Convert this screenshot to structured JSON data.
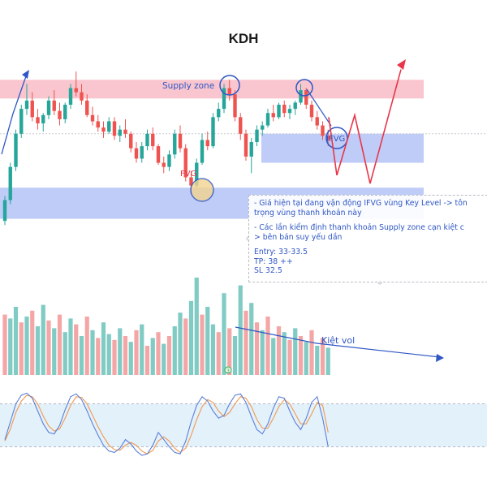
{
  "chart_data": {
    "type": "candlestick",
    "title": "KDH",
    "colors": {
      "up": "#26a69a",
      "down": "#ef5350",
      "vol_up": "#80cbc4",
      "vol_down": "#f4a6a6",
      "supply": "#f9c2cb",
      "demand": "#bcc9f7",
      "annotation": "#2e57c4",
      "red_path": "#e8364a",
      "stoch_k": "#5b7fd8",
      "stoch_d": "#f0994f",
      "stoch_band": "#e3f1fb"
    },
    "zones": [
      {
        "name": "Supply zone",
        "kind": "supply",
        "price_top": 38,
        "price_bottom": 37.1
      },
      {
        "name": "IFVG",
        "kind": "demand",
        "price_top": 35.4,
        "price_bottom": 34.0
      },
      {
        "name": "FVG",
        "kind": "demand",
        "price_top": 32.8,
        "price_bottom": 31.3
      }
    ],
    "ohlc": [
      [
        31.2,
        32.4,
        31.0,
        32.2
      ],
      [
        32.2,
        34.0,
        32.0,
        33.8
      ],
      [
        33.8,
        35.6,
        33.6,
        35.4
      ],
      [
        35.4,
        36.8,
        35.2,
        36.6
      ],
      [
        36.6,
        37.8,
        36.3,
        37.0
      ],
      [
        37.0,
        37.4,
        36.0,
        36.2
      ],
      [
        36.2,
        36.6,
        35.6,
        35.9
      ],
      [
        35.9,
        36.4,
        35.5,
        36.3
      ],
      [
        36.3,
        37.2,
        36.1,
        37.0
      ],
      [
        37.0,
        37.5,
        36.3,
        36.5
      ],
      [
        36.5,
        36.9,
        35.8,
        36.1
      ],
      [
        36.1,
        36.9,
        35.9,
        36.8
      ],
      [
        36.8,
        37.8,
        36.6,
        37.6
      ],
      [
        37.6,
        38.4,
        37.2,
        37.4
      ],
      [
        37.4,
        37.8,
        36.8,
        37.0
      ],
      [
        37.0,
        37.3,
        36.2,
        36.3
      ],
      [
        36.3,
        36.7,
        35.8,
        36.0
      ],
      [
        36.0,
        36.3,
        35.5,
        35.7
      ],
      [
        35.7,
        36.0,
        35.2,
        35.5
      ],
      [
        35.5,
        36.2,
        35.4,
        36.0
      ],
      [
        36.0,
        36.2,
        35.1,
        35.3
      ],
      [
        35.3,
        35.8,
        35.0,
        35.6
      ],
      [
        35.6,
        36.1,
        35.2,
        35.4
      ],
      [
        35.4,
        35.5,
        34.5,
        34.7
      ],
      [
        34.7,
        35.0,
        34.0,
        34.2
      ],
      [
        34.2,
        35.0,
        34.0,
        34.8
      ],
      [
        34.8,
        35.6,
        34.6,
        35.4
      ],
      [
        35.4,
        35.7,
        34.6,
        34.8
      ],
      [
        34.8,
        34.9,
        33.9,
        34.0
      ],
      [
        34.0,
        34.3,
        33.5,
        33.8
      ],
      [
        33.8,
        34.6,
        33.6,
        34.4
      ],
      [
        34.4,
        35.6,
        34.2,
        35.4
      ],
      [
        35.4,
        35.8,
        34.5,
        34.7
      ],
      [
        34.7,
        34.9,
        33.1,
        33.3
      ],
      [
        33.3,
        33.6,
        32.5,
        32.9
      ],
      [
        32.9,
        34.2,
        32.8,
        34.0
      ],
      [
        34.0,
        35.4,
        33.9,
        35.1
      ],
      [
        35.1,
        35.5,
        34.6,
        34.8
      ],
      [
        34.8,
        36.4,
        34.7,
        36.2
      ],
      [
        36.2,
        36.9,
        36.0,
        36.6
      ],
      [
        36.6,
        37.8,
        36.4,
        37.6
      ],
      [
        37.6,
        38.0,
        37.0,
        37.3
      ],
      [
        37.3,
        37.5,
        36.0,
        36.2
      ],
      [
        36.2,
        36.4,
        35.1,
        35.4
      ],
      [
        35.4,
        35.6,
        34.1,
        34.3
      ],
      [
        34.3,
        35.2,
        33.5,
        35.0
      ],
      [
        35.0,
        35.8,
        34.8,
        35.6
      ],
      [
        35.6,
        36.0,
        35.3,
        35.8
      ],
      [
        35.8,
        36.6,
        35.7,
        36.4
      ],
      [
        36.4,
        36.8,
        36.0,
        36.2
      ],
      [
        36.2,
        36.9,
        36.1,
        36.8
      ],
      [
        36.8,
        37.0,
        36.2,
        36.4
      ],
      [
        36.4,
        36.8,
        36.1,
        36.6
      ],
      [
        36.6,
        37.0,
        36.3,
        36.9
      ],
      [
        36.9,
        37.8,
        36.8,
        37.5
      ],
      [
        37.5,
        37.6,
        36.6,
        36.8
      ],
      [
        36.8,
        37.0,
        36.0,
        36.2
      ],
      [
        36.2,
        36.5,
        35.6,
        35.8
      ],
      [
        35.8,
        36.0,
        35.1,
        35.3
      ],
      [
        35.3,
        35.6,
        34.8,
        35.1
      ]
    ],
    "volume": [
      [
        0.62,
        0
      ],
      [
        0.58,
        1
      ],
      [
        0.7,
        1
      ],
      [
        0.54,
        0
      ],
      [
        0.6,
        1
      ],
      [
        0.66,
        0
      ],
      [
        0.5,
        1
      ],
      [
        0.72,
        1
      ],
      [
        0.56,
        0
      ],
      [
        0.48,
        1
      ],
      [
        0.62,
        0
      ],
      [
        0.44,
        1
      ],
      [
        0.58,
        1
      ],
      [
        0.52,
        0
      ],
      [
        0.4,
        1
      ],
      [
        0.6,
        0
      ],
      [
        0.46,
        1
      ],
      [
        0.38,
        0
      ],
      [
        0.54,
        1
      ],
      [
        0.42,
        1
      ],
      [
        0.36,
        0
      ],
      [
        0.48,
        1
      ],
      [
        0.4,
        0
      ],
      [
        0.34,
        1
      ],
      [
        0.46,
        0
      ],
      [
        0.52,
        1
      ],
      [
        0.3,
        0
      ],
      [
        0.38,
        1
      ],
      [
        0.44,
        0
      ],
      [
        0.32,
        1
      ],
      [
        0.4,
        0
      ],
      [
        0.5,
        1
      ],
      [
        0.64,
        1
      ],
      [
        0.58,
        0
      ],
      [
        0.76,
        1
      ],
      [
        1.0,
        1
      ],
      [
        0.62,
        0
      ],
      [
        0.7,
        1
      ],
      [
        0.52,
        1
      ],
      [
        0.44,
        0
      ],
      [
        0.84,
        1
      ],
      [
        0.48,
        0
      ],
      [
        0.4,
        1
      ],
      [
        0.92,
        1
      ],
      [
        0.66,
        0
      ],
      [
        0.74,
        1
      ],
      [
        0.54,
        0
      ],
      [
        0.46,
        1
      ],
      [
        0.6,
        0
      ],
      [
        0.38,
        1
      ],
      [
        0.5,
        0
      ],
      [
        0.44,
        1
      ],
      [
        0.36,
        0
      ],
      [
        0.48,
        1
      ],
      [
        0.4,
        0
      ],
      [
        0.34,
        1
      ],
      [
        0.46,
        0
      ],
      [
        0.3,
        1
      ],
      [
        0.38,
        0
      ],
      [
        0.28,
        1
      ]
    ],
    "stoch_k": [
      30,
      55,
      80,
      92,
      95,
      88,
      70,
      52,
      40,
      38,
      50,
      72,
      90,
      94,
      86,
      70,
      52,
      36,
      22,
      14,
      12,
      18,
      30,
      24,
      14,
      8,
      10,
      22,
      40,
      30,
      20,
      12,
      10,
      28,
      55,
      78,
      90,
      84,
      70,
      60,
      64,
      80,
      92,
      94,
      82,
      62,
      44,
      38,
      52,
      74,
      90,
      88,
      70,
      54,
      44,
      60,
      82,
      90,
      60,
      20
    ],
    "stoch_d": [
      28,
      45,
      68,
      84,
      92,
      90,
      80,
      63,
      49,
      42,
      45,
      60,
      78,
      90,
      89,
      80,
      64,
      48,
      34,
      22,
      16,
      15,
      22,
      26,
      22,
      14,
      10,
      15,
      28,
      34,
      28,
      18,
      12,
      18,
      36,
      58,
      76,
      86,
      82,
      70,
      62,
      68,
      80,
      90,
      88,
      76,
      58,
      46,
      46,
      60,
      76,
      86,
      80,
      66,
      52,
      52,
      66,
      82,
      78,
      40
    ],
    "stoch_band": [
      20,
      80
    ],
    "forecast": [
      36.2,
      33.4,
      36.3,
      33.0,
      38.5
    ],
    "volume_trend": "Kiệt vol"
  },
  "labels": {
    "title": "KDH",
    "supply": "Supply zone",
    "ifvg": "IFVG",
    "fvg": "FVG",
    "kiet_vol": "Kiệt vol"
  },
  "note": {
    "line1": "- Giá hiện tại đang vận động IFVG vùng Key Level -> tôn",
    "line2": "trọng vùng thanh khoản này",
    "line3": "- Các lần kiểm định thanh khoản Supply zone cạn kiệt c",
    "line4": "> bên bán suy yếu dần",
    "entry": "Entry: 33-33.5",
    "tp": "TP: 38 ++",
    "sl": "SL 32.5"
  },
  "vol_marker": "3"
}
